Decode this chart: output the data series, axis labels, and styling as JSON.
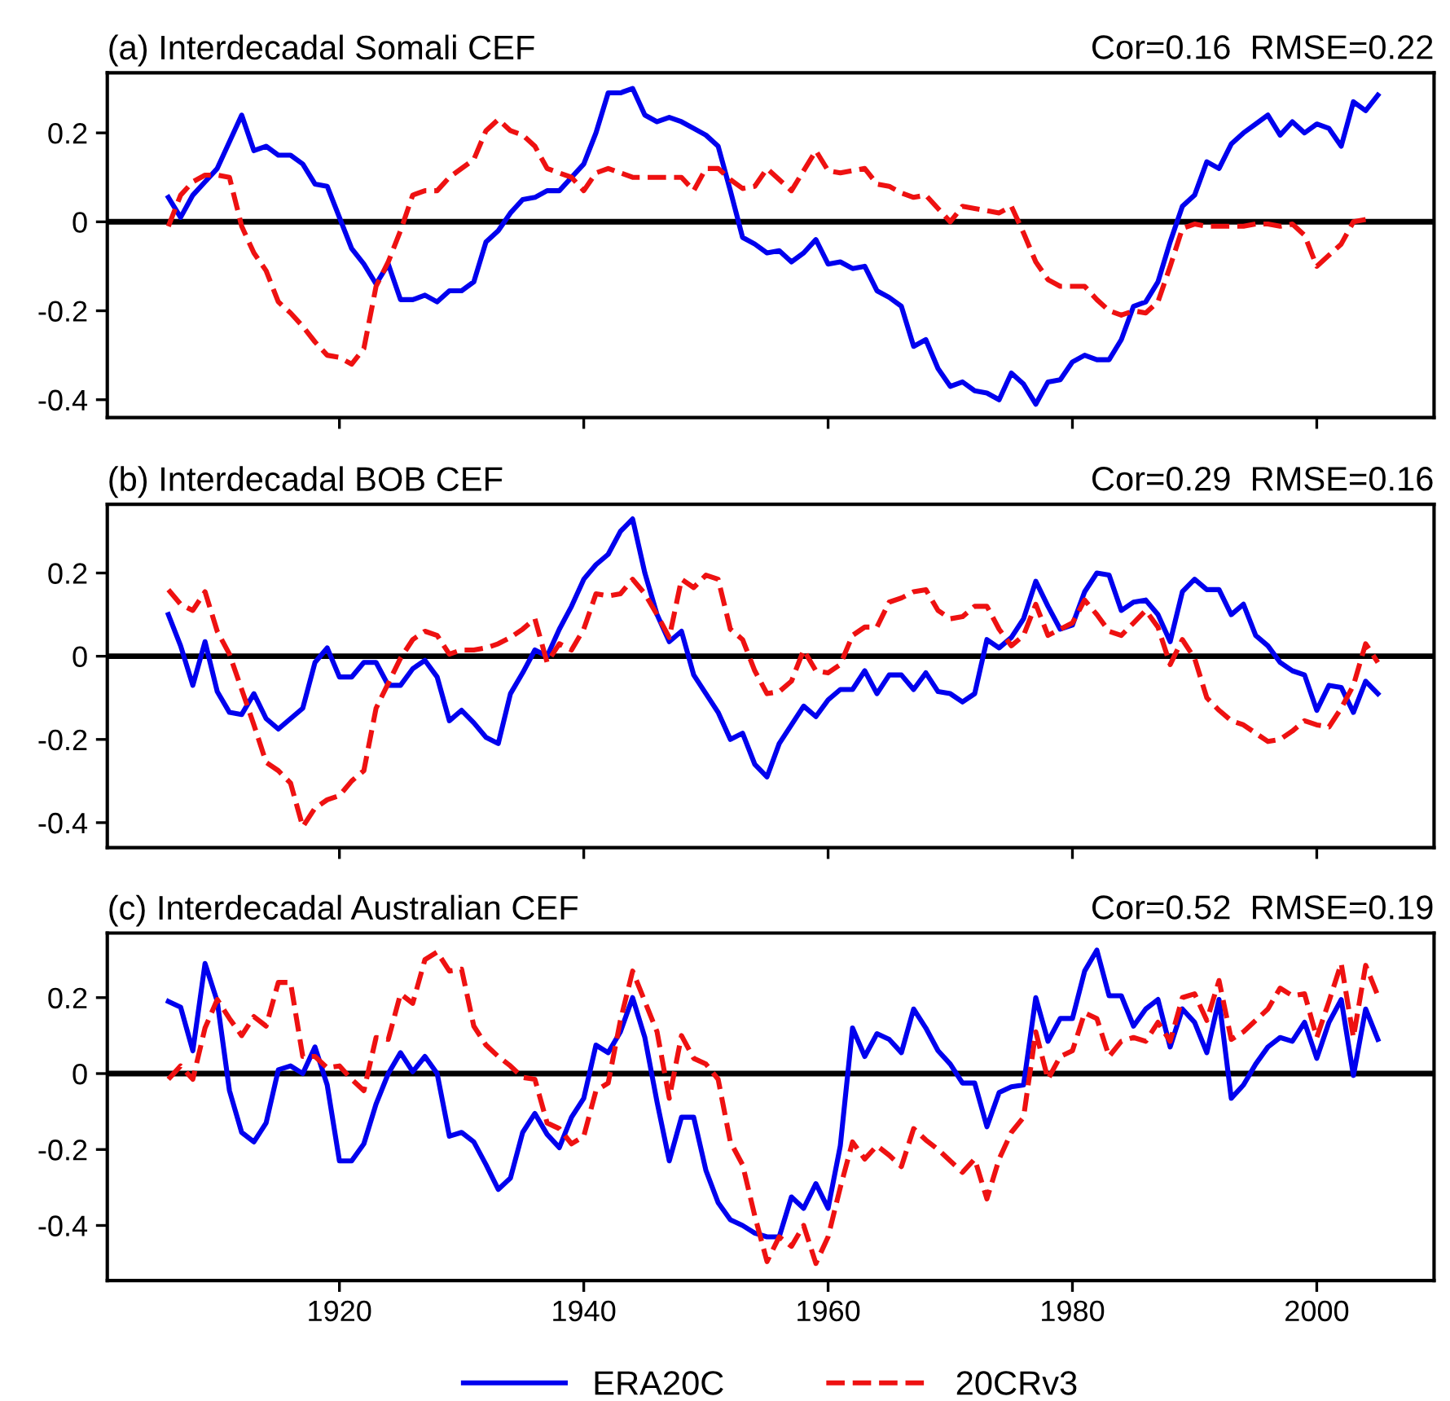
{
  "chart_data": [
    {
      "type": "line",
      "title": "(a) Interdecadal Somali CEF",
      "annotations": [
        "Cor=0.16  RMSE=0.22"
      ],
      "x": [
        1906,
        1907,
        1908,
        1909,
        1910,
        1911,
        1912,
        1913,
        1914,
        1915,
        1916,
        1917,
        1918,
        1919,
        1920,
        1921,
        1922,
        1923,
        1924,
        1925,
        1926,
        1927,
        1928,
        1929,
        1930,
        1931,
        1932,
        1933,
        1934,
        1935,
        1936,
        1937,
        1938,
        1939,
        1940,
        1941,
        1942,
        1943,
        1944,
        1945,
        1946,
        1947,
        1948,
        1949,
        1950,
        1951,
        1952,
        1953,
        1954,
        1955,
        1956,
        1957,
        1958,
        1959,
        1960,
        1961,
        1962,
        1963,
        1964,
        1965,
        1966,
        1967,
        1968,
        1969,
        1970,
        1971,
        1972,
        1973,
        1974,
        1975,
        1976,
        1977,
        1978,
        1979,
        1980,
        1981,
        1982,
        1983,
        1984,
        1985,
        1986,
        1987,
        1988,
        1989,
        1990,
        1991,
        1992,
        1993,
        1994,
        1995,
        1996,
        1997,
        1998,
        1999,
        2000,
        2001,
        2002,
        2003,
        2004,
        2005
      ],
      "xlim": [
        1901,
        2009.6
      ],
      "xticks": [
        1920,
        1940,
        1960,
        1980,
        2000
      ],
      "ylim": [
        -0.44,
        0.335
      ],
      "yticks": [
        -0.4,
        -0.2,
        0,
        0.2
      ],
      "tick_labels": "y",
      "grid": false,
      "legend": false,
      "ref_lines": [
        {
          "axis": "y",
          "value": 0,
          "color": "#000000"
        }
      ],
      "series": [
        {
          "color": "#0000ee",
          "line_style": "solid",
          "values": [
            0.055,
            0.01,
            0.06,
            0.09,
            0.12,
            0.18,
            0.24,
            0.16,
            0.17,
            0.15,
            0.15,
            0.13,
            0.085,
            0.08,
            0.01,
            -0.06,
            -0.095,
            -0.14,
            -0.095,
            -0.175,
            -0.175,
            -0.165,
            -0.18,
            -0.155,
            -0.155,
            -0.135,
            -0.045,
            -0.02,
            0.02,
            0.05,
            0.055,
            0.07,
            0.07,
            0.1,
            0.13,
            0.2,
            0.29,
            0.29,
            0.3,
            0.24,
            0.225,
            0.235,
            0.225,
            0.21,
            0.195,
            0.17,
            0.07,
            -0.035,
            -0.05,
            -0.07,
            -0.065,
            -0.09,
            -0.07,
            -0.04,
            -0.095,
            -0.09,
            -0.105,
            -0.1,
            -0.155,
            -0.17,
            -0.19,
            -0.28,
            -0.265,
            -0.33,
            -0.37,
            -0.36,
            -0.38,
            -0.385,
            -0.4,
            -0.34,
            -0.365,
            -0.41,
            -0.36,
            -0.355,
            -0.315,
            -0.3,
            -0.31,
            -0.31,
            -0.265,
            -0.19,
            -0.18,
            -0.135,
            -0.045,
            0.035,
            0.06,
            0.135,
            0.12,
            0.175,
            0.2,
            0.22,
            0.24,
            0.195,
            0.225,
            0.2,
            0.22,
            0.21,
            0.17,
            0.27,
            0.25,
            0.285
          ]
        },
        {
          "color": "#ee1111",
          "line_style": "dashed",
          "values": [
            -0.01,
            0.06,
            0.09,
            0.105,
            0.105,
            0.1,
            -0.01,
            -0.07,
            -0.11,
            -0.18,
            -0.205,
            -0.235,
            -0.27,
            -0.3,
            -0.305,
            -0.32,
            -0.285,
            -0.145,
            -0.09,
            -0.02,
            0.06,
            0.07,
            0.07,
            0.1,
            0.12,
            0.14,
            0.205,
            0.23,
            0.205,
            0.195,
            0.17,
            0.12,
            0.11,
            0.1,
            0.07,
            0.11,
            0.12,
            0.11,
            0.1,
            0.1,
            0.1,
            0.1,
            0.1,
            0.07,
            0.12,
            0.12,
            0.095,
            0.075,
            0.08,
            0.12,
            0.095,
            0.07,
            0.115,
            0.16,
            0.115,
            0.11,
            0.115,
            0.12,
            0.085,
            0.08,
            0.065,
            0.055,
            0.06,
            0.03,
            0.0,
            0.035,
            0.03,
            0.025,
            0.02,
            0.035,
            -0.025,
            -0.09,
            -0.13,
            -0.145,
            -0.145,
            -0.145,
            -0.175,
            -0.2,
            -0.21,
            -0.2,
            -0.205,
            -0.18,
            -0.1,
            -0.015,
            -0.005,
            -0.01,
            -0.01,
            -0.01,
            -0.01,
            -0.005,
            -0.005,
            -0.01,
            -0.005,
            -0.03,
            -0.1,
            -0.075,
            -0.05,
            0.0,
            0.005,
            null
          ]
        }
      ]
    },
    {
      "type": "line",
      "title": "(b) Interdecadal BOB CEF",
      "annotations": [
        "Cor=0.29  RMSE=0.16"
      ],
      "x": [
        1906,
        1907,
        1908,
        1909,
        1910,
        1911,
        1912,
        1913,
        1914,
        1915,
        1916,
        1917,
        1918,
        1919,
        1920,
        1921,
        1922,
        1923,
        1924,
        1925,
        1926,
        1927,
        1928,
        1929,
        1930,
        1931,
        1932,
        1933,
        1934,
        1935,
        1936,
        1937,
        1938,
        1939,
        1940,
        1941,
        1942,
        1943,
        1944,
        1945,
        1946,
        1947,
        1948,
        1949,
        1950,
        1951,
        1952,
        1953,
        1954,
        1955,
        1956,
        1957,
        1958,
        1959,
        1960,
        1961,
        1962,
        1963,
        1964,
        1965,
        1966,
        1967,
        1968,
        1969,
        1970,
        1971,
        1972,
        1973,
        1974,
        1975,
        1976,
        1977,
        1978,
        1979,
        1980,
        1981,
        1982,
        1983,
        1984,
        1985,
        1986,
        1987,
        1988,
        1989,
        1990,
        1991,
        1992,
        1993,
        1994,
        1995,
        1996,
        1997,
        1998,
        1999,
        2000,
        2001,
        2002,
        2003,
        2004,
        2005
      ],
      "xlim": [
        1901,
        2009.6
      ],
      "xticks": [
        1920,
        1940,
        1960,
        1980,
        2000
      ],
      "ylim": [
        -0.46,
        0.365
      ],
      "yticks": [
        -0.4,
        -0.2,
        0,
        0.2
      ],
      "tick_labels": "y",
      "grid": false,
      "legend": false,
      "ref_lines": [
        {
          "axis": "y",
          "value": 0,
          "color": "#000000"
        }
      ],
      "series": [
        {
          "color": "#0000ee",
          "line_style": "solid",
          "values": [
            0.1,
            0.025,
            -0.07,
            0.035,
            -0.085,
            -0.135,
            -0.14,
            -0.09,
            -0.15,
            -0.175,
            -0.15,
            -0.125,
            -0.015,
            0.02,
            -0.05,
            -0.05,
            -0.015,
            -0.015,
            -0.07,
            -0.07,
            -0.03,
            -0.01,
            -0.05,
            -0.155,
            -0.13,
            -0.16,
            -0.195,
            -0.21,
            -0.09,
            -0.04,
            0.015,
            0.0,
            0.065,
            0.12,
            0.185,
            0.22,
            0.245,
            0.3,
            0.33,
            0.2,
            0.1,
            0.035,
            0.06,
            -0.045,
            -0.09,
            -0.135,
            -0.2,
            -0.185,
            -0.26,
            -0.29,
            -0.21,
            -0.165,
            -0.12,
            -0.145,
            -0.105,
            -0.08,
            -0.08,
            -0.035,
            -0.09,
            -0.045,
            -0.045,
            -0.08,
            -0.04,
            -0.085,
            -0.09,
            -0.11,
            -0.09,
            0.04,
            0.02,
            0.045,
            0.09,
            0.18,
            0.12,
            0.065,
            0.075,
            0.155,
            0.2,
            0.195,
            0.11,
            0.13,
            0.135,
            0.1,
            0.035,
            0.155,
            0.185,
            0.16,
            0.16,
            0.1,
            0.125,
            0.05,
            0.025,
            -0.015,
            -0.035,
            -0.045,
            -0.13,
            -0.07,
            -0.075,
            -0.135,
            -0.06,
            -0.09
          ]
        },
        {
          "color": "#ee1111",
          "line_style": "dashed",
          "values": [
            0.16,
            0.125,
            0.11,
            0.155,
            0.06,
            0.005,
            -0.08,
            -0.165,
            -0.255,
            -0.275,
            -0.305,
            -0.41,
            -0.365,
            -0.345,
            -0.335,
            -0.3,
            -0.275,
            -0.125,
            -0.065,
            -0.005,
            0.04,
            0.06,
            0.05,
            0.005,
            0.015,
            0.015,
            0.02,
            0.03,
            0.045,
            0.065,
            0.09,
            -0.015,
            0.03,
            0.015,
            0.065,
            0.15,
            0.145,
            0.15,
            0.185,
            0.15,
            0.1,
            0.045,
            0.185,
            0.165,
            0.195,
            0.185,
            0.065,
            0.04,
            -0.035,
            -0.09,
            -0.085,
            -0.06,
            0.015,
            -0.035,
            -0.04,
            -0.02,
            0.05,
            0.07,
            0.07,
            0.13,
            0.14,
            0.155,
            0.16,
            0.11,
            0.09,
            0.095,
            0.12,
            0.12,
            0.065,
            0.025,
            0.05,
            0.125,
            0.05,
            0.065,
            0.08,
            0.135,
            0.1,
            0.06,
            0.05,
            0.08,
            0.11,
            0.07,
            -0.02,
            0.04,
            -0.005,
            -0.1,
            -0.13,
            -0.155,
            -0.165,
            -0.185,
            -0.205,
            -0.2,
            -0.18,
            -0.155,
            -0.165,
            -0.17,
            -0.125,
            -0.07,
            0.03,
            -0.015
          ]
        }
      ]
    },
    {
      "type": "line",
      "title": "(c) Interdecadal Australian CEF",
      "annotations": [
        "Cor=0.52  RMSE=0.19"
      ],
      "x": [
        1906,
        1907,
        1908,
        1909,
        1910,
        1911,
        1912,
        1913,
        1914,
        1915,
        1916,
        1917,
        1918,
        1919,
        1920,
        1921,
        1922,
        1923,
        1924,
        1925,
        1926,
        1927,
        1928,
        1929,
        1930,
        1931,
        1932,
        1933,
        1934,
        1935,
        1936,
        1937,
        1938,
        1939,
        1940,
        1941,
        1942,
        1943,
        1944,
        1945,
        1946,
        1947,
        1948,
        1949,
        1950,
        1951,
        1952,
        1953,
        1954,
        1955,
        1956,
        1957,
        1958,
        1959,
        1960,
        1961,
        1962,
        1963,
        1964,
        1965,
        1966,
        1967,
        1968,
        1969,
        1970,
        1971,
        1972,
        1973,
        1974,
        1975,
        1976,
        1977,
        1978,
        1979,
        1980,
        1981,
        1982,
        1983,
        1984,
        1985,
        1986,
        1987,
        1988,
        1989,
        1990,
        1991,
        1992,
        1993,
        1994,
        1995,
        1996,
        1997,
        1998,
        1999,
        2000,
        2001,
        2002,
        2003,
        2004,
        2005
      ],
      "xlim": [
        1901,
        2009.6
      ],
      "xticks": [
        1920,
        1940,
        1960,
        1980,
        2000
      ],
      "ylim": [
        -0.545,
        0.37
      ],
      "yticks": [
        -0.4,
        -0.2,
        0,
        0.2
      ],
      "grid": false,
      "legend": "bottom",
      "ref_lines": [
        {
          "axis": "y",
          "value": 0,
          "color": "#000000"
        }
      ],
      "series": [
        {
          "name": "ERA20C",
          "color": "#0000ee",
          "line_style": "solid",
          "values": [
            0.19,
            0.175,
            0.06,
            0.29,
            0.19,
            -0.045,
            -0.155,
            -0.18,
            -0.13,
            0.01,
            0.02,
            0.0,
            0.07,
            -0.03,
            -0.23,
            -0.23,
            -0.185,
            -0.08,
            0.0,
            0.055,
            0.005,
            0.045,
            0.0,
            -0.165,
            -0.155,
            -0.18,
            -0.24,
            -0.305,
            -0.275,
            -0.155,
            -0.105,
            -0.16,
            -0.195,
            -0.115,
            -0.065,
            0.075,
            0.055,
            0.11,
            0.2,
            0.095,
            -0.075,
            -0.23,
            -0.115,
            -0.115,
            -0.255,
            -0.34,
            -0.385,
            -0.4,
            -0.42,
            -0.43,
            -0.43,
            -0.325,
            -0.355,
            -0.29,
            -0.355,
            -0.19,
            0.12,
            0.045,
            0.105,
            0.09,
            0.055,
            0.17,
            0.12,
            0.06,
            0.025,
            -0.025,
            -0.025,
            -0.14,
            -0.05,
            -0.035,
            -0.03,
            0.2,
            0.085,
            0.145,
            0.145,
            0.27,
            0.325,
            0.205,
            0.205,
            0.125,
            0.17,
            0.195,
            0.07,
            0.17,
            0.135,
            0.055,
            0.195,
            -0.065,
            -0.03,
            0.025,
            0.07,
            0.095,
            0.085,
            0.135,
            0.04,
            0.135,
            0.195,
            -0.005,
            0.17,
            0.09
          ]
        },
        {
          "name": "20CRv3",
          "color": "#ee1111",
          "line_style": "dashed",
          "values": [
            -0.015,
            0.02,
            -0.015,
            0.12,
            0.195,
            0.145,
            0.1,
            0.15,
            0.125,
            0.24,
            0.24,
            0.045,
            0.045,
            0.015,
            0.02,
            -0.015,
            -0.045,
            0.095,
            0.09,
            0.21,
            0.185,
            0.3,
            0.32,
            0.27,
            0.275,
            0.125,
            0.075,
            0.045,
            0.02,
            -0.01,
            -0.015,
            -0.13,
            -0.145,
            -0.185,
            -0.165,
            -0.045,
            -0.025,
            0.14,
            0.27,
            0.19,
            0.11,
            -0.065,
            0.1,
            0.04,
            0.025,
            -0.015,
            -0.18,
            -0.24,
            -0.375,
            -0.495,
            -0.43,
            -0.455,
            -0.4,
            -0.5,
            -0.43,
            -0.3,
            -0.18,
            -0.225,
            -0.19,
            -0.215,
            -0.245,
            -0.145,
            -0.175,
            -0.2,
            -0.23,
            -0.26,
            -0.225,
            -0.33,
            -0.225,
            -0.155,
            -0.115,
            0.11,
            -0.015,
            0.045,
            0.06,
            0.16,
            0.145,
            0.045,
            0.085,
            0.095,
            0.085,
            0.135,
            0.085,
            0.2,
            0.21,
            0.14,
            0.245,
            0.09,
            0.11,
            0.14,
            0.17,
            0.225,
            0.205,
            0.21,
            0.095,
            0.19,
            0.29,
            0.095,
            0.285,
            0.205
          ]
        }
      ]
    }
  ]
}
